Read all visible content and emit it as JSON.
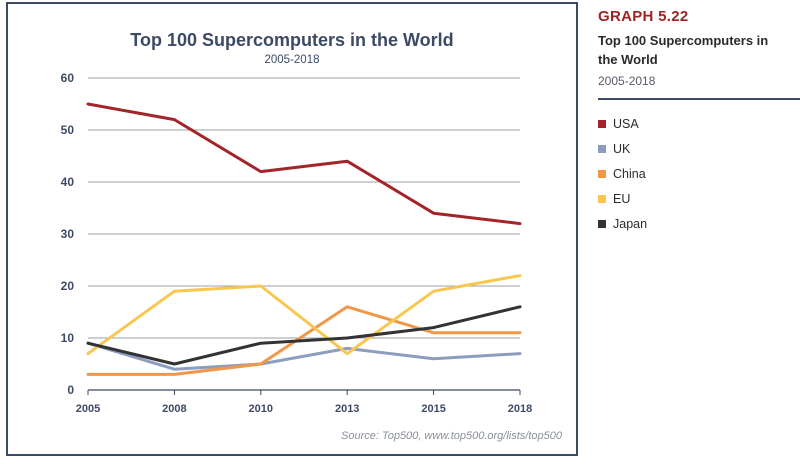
{
  "chart_data": {
    "type": "line",
    "title": "Top 100 Supercomputers in the World",
    "subtitle": "2005-2018",
    "categories": [
      "2005",
      "2008",
      "2010",
      "2013",
      "2015",
      "2018"
    ],
    "ylim": [
      0,
      60
    ],
    "yticks": [
      0,
      10,
      20,
      30,
      40,
      50,
      60
    ],
    "grid": true,
    "legend_position": "right",
    "series": [
      {
        "name": "USA",
        "color": "#a3252a",
        "values": [
          55,
          52,
          42,
          44,
          34,
          32
        ]
      },
      {
        "name": "UK",
        "color": "#8c9dc0",
        "values": [
          9,
          4,
          5,
          8,
          6,
          7
        ]
      },
      {
        "name": "China",
        "color": "#f0974a",
        "values": [
          3,
          3,
          5,
          16,
          11,
          11
        ]
      },
      {
        "name": "EU",
        "color": "#f9c74f",
        "values": [
          7,
          19,
          20,
          7,
          19,
          22
        ]
      },
      {
        "name": "Japan",
        "color": "#333333",
        "values": [
          9,
          5,
          9,
          10,
          12,
          16
        ]
      }
    ],
    "source": "Source: Top500, www.top500.org/lists/top500"
  },
  "side_panel": {
    "graph_label": "GRAPH 5.22",
    "title": "Top 100 Supercomputers in the World",
    "subtitle": "2005-2018"
  }
}
